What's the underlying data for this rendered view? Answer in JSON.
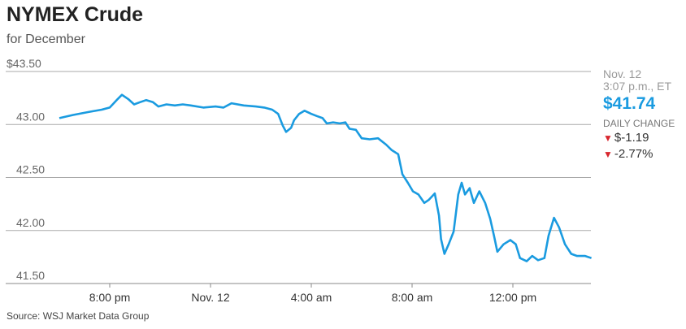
{
  "header": {
    "title": "NYMEX Crude",
    "subtitle": "for December"
  },
  "quote": {
    "date": "Nov. 12",
    "time": "3:07 p.m., ET",
    "price": "$41.74",
    "daily_change_label": "DAILY CHANGE",
    "change": "$-1.19",
    "change_pct": "-2.77%",
    "direction": "down",
    "down_color": "#d8262e"
  },
  "source": "Source: WSJ Market Data Group",
  "chart_data": {
    "type": "line",
    "title": "",
    "xlabel": "",
    "ylabel": "",
    "ylim": [
      41.5,
      43.5
    ],
    "xlim": [
      "Nov 11 18:00",
      "Nov 12 15:07"
    ],
    "yticks": [
      {
        "value": 43.5,
        "label": "$43.50"
      },
      {
        "value": 43.0,
        "label": "43.00"
      },
      {
        "value": 42.5,
        "label": "42.50"
      },
      {
        "value": 42.0,
        "label": "42.00"
      },
      {
        "value": 41.5,
        "label": "41.50"
      }
    ],
    "xticks": [
      {
        "value": "Nov 11 20:00",
        "label": "8:00 pm"
      },
      {
        "value": "Nov 12 00:00",
        "label": "Nov. 12"
      },
      {
        "value": "Nov 12 04:00",
        "label": "4:00 am"
      },
      {
        "value": "Nov 12 08:00",
        "label": "8:00 am"
      },
      {
        "value": "Nov 12 12:00",
        "label": "12:00 pm"
      }
    ],
    "grid": true,
    "color": "#1a9be0",
    "series": [
      {
        "x": [
          "Nov 11 18:00",
          "Nov 11 18:33",
          "Nov 11 19:12",
          "Nov 11 19:41",
          "Nov 11 20:00",
          "Nov 11 20:19",
          "Nov 11 20:29",
          "Nov 11 20:44",
          "Nov 11 20:58",
          "Nov 11 21:12",
          "Nov 11 21:27",
          "Nov 11 21:43",
          "Nov 11 21:56",
          "Nov 11 22:15",
          "Nov 11 22:35",
          "Nov 11 22:54",
          "Nov 11 23:13",
          "Nov 11 23:43",
          "Nov 12 00:12",
          "Nov 12 00:31",
          "Nov 12 00:50",
          "Nov 12 01:19",
          "Nov 12 01:48",
          "Nov 12 02:08",
          "Nov 12 02:27",
          "Nov 12 02:41",
          "Nov 12 02:52",
          "Nov 12 03:00",
          "Nov 12 03:12",
          "Nov 12 03:19",
          "Nov 12 03:31",
          "Nov 12 03:44",
          "Nov 12 04:00",
          "Nov 12 04:13",
          "Nov 12 04:27",
          "Nov 12 04:37",
          "Nov 12 04:52",
          "Nov 12 05:08",
          "Nov 12 05:21",
          "Nov 12 05:31",
          "Nov 12 05:46",
          "Nov 12 06:00",
          "Nov 12 06:19",
          "Nov 12 06:39",
          "Nov 12 06:58",
          "Nov 12 07:11",
          "Nov 12 07:27",
          "Nov 12 07:37",
          "Nov 12 07:50",
          "Nov 12 08:02",
          "Nov 12 08:15",
          "Nov 12 08:29",
          "Nov 12 08:40",
          "Nov 12 08:54",
          "Nov 12 09:04",
          "Nov 12 09:09",
          "Nov 12 09:17",
          "Nov 12 09:27",
          "Nov 12 09:39",
          "Nov 12 09:50",
          "Nov 12 09:58",
          "Nov 12 10:06",
          "Nov 12 10:17",
          "Nov 12 10:27",
          "Nov 12 10:40",
          "Nov 12 10:54",
          "Nov 12 11:06",
          "Nov 12 11:15",
          "Nov 12 11:23",
          "Nov 12 11:38",
          "Nov 12 11:54",
          "Nov 12 12:07",
          "Nov 12 12:17",
          "Nov 12 12:33",
          "Nov 12 12:46",
          "Nov 12 13:00",
          "Nov 12 13:15",
          "Nov 12 13:25",
          "Nov 12 13:38",
          "Nov 12 13:50",
          "Nov 12 14:04",
          "Nov 12 14:19",
          "Nov 12 14:33",
          "Nov 12 14:52",
          "Nov 12 15:07"
        ],
        "y": [
          43.06,
          43.09,
          43.12,
          43.14,
          43.16,
          43.24,
          43.28,
          43.24,
          43.19,
          43.21,
          43.23,
          43.21,
          43.17,
          43.19,
          43.18,
          43.19,
          43.18,
          43.16,
          43.17,
          43.16,
          43.2,
          43.18,
          43.17,
          43.16,
          43.14,
          43.1,
          42.99,
          42.93,
          42.97,
          43.04,
          43.1,
          43.13,
          43.1,
          43.08,
          43.06,
          43.01,
          43.02,
          43.01,
          43.02,
          42.96,
          42.95,
          42.87,
          42.86,
          42.87,
          42.81,
          42.76,
          42.72,
          42.53,
          42.45,
          42.37,
          42.34,
          42.26,
          42.29,
          42.35,
          42.14,
          41.92,
          41.78,
          41.87,
          41.99,
          42.34,
          42.45,
          42.34,
          42.4,
          42.26,
          42.37,
          42.26,
          42.11,
          41.95,
          41.8,
          41.87,
          41.91,
          41.87,
          41.74,
          41.71,
          41.76,
          41.72,
          41.74,
          41.95,
          42.12,
          42.03,
          41.87,
          41.78,
          41.76,
          41.76,
          41.74
        ]
      }
    ]
  }
}
